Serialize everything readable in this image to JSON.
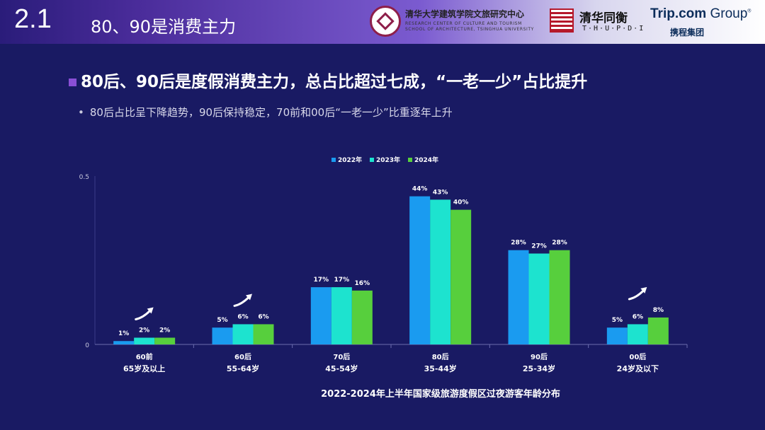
{
  "header": {
    "section_number": "2.1",
    "section_title": "80、90是消费主力",
    "org1_cn": "清华大学建筑学院文旅研究中心",
    "org1_en_line1": "RESEARCH CENTER OF CULTURE AND TOURISM",
    "org1_en_line2": "SCHOOL OF ARCHITECTURE, TSINGHUA UNIVERSITY",
    "org2_cn": "清华同衡",
    "org2_en": "T·H·U·P·D·I",
    "org3_name_bold": "Trip.com",
    "org3_name_light": " Group",
    "org3_tm": "®",
    "org3_cn": "携程集团"
  },
  "headline": "80后、90后是度假消费主力，总占比超过七成，“一老一少”占比提升",
  "subpoint": "80后占比呈下降趋势，90后保持稳定，70前和00后“一老一少”比重逐年上升",
  "colors": {
    "bg": "#191a63",
    "s2022": "#1a9bf0",
    "s2023": "#1de3cf",
    "s2024": "#57cf3d"
  },
  "chart_data": {
    "type": "bar",
    "title": "2022-2024年上半年国家级旅游度假区过夜游客年龄分布",
    "categories": [
      "60前",
      "60后",
      "70后",
      "80后",
      "90后",
      "00后"
    ],
    "category_sublabels": [
      "65岁及以上",
      "55-64岁",
      "45-54岁",
      "35-44岁",
      "25-34岁",
      "24岁及以下"
    ],
    "series": [
      {
        "name": "2022年",
        "values": [
          0.01,
          0.05,
          0.17,
          0.44,
          0.28,
          0.05
        ],
        "labels": [
          "1%",
          "5%",
          "17%",
          "44%",
          "28%",
          "5%"
        ]
      },
      {
        "name": "2023年",
        "values": [
          0.02,
          0.06,
          0.17,
          0.43,
          0.27,
          0.06
        ],
        "labels": [
          "2%",
          "6%",
          "17%",
          "43%",
          "27%",
          "6%"
        ]
      },
      {
        "name": "2024年",
        "values": [
          0.02,
          0.06,
          0.16,
          0.4,
          0.28,
          0.08
        ],
        "labels": [
          "2%",
          "6%",
          "16%",
          "40%",
          "28%",
          "8%"
        ]
      }
    ],
    "ylim": [
      0,
      0.5
    ],
    "yticks": [
      "0",
      "0.5"
    ],
    "legend_position": "top-center",
    "trend_arrows_on": [
      "60前",
      "60后",
      "00后"
    ],
    "grid": false
  }
}
